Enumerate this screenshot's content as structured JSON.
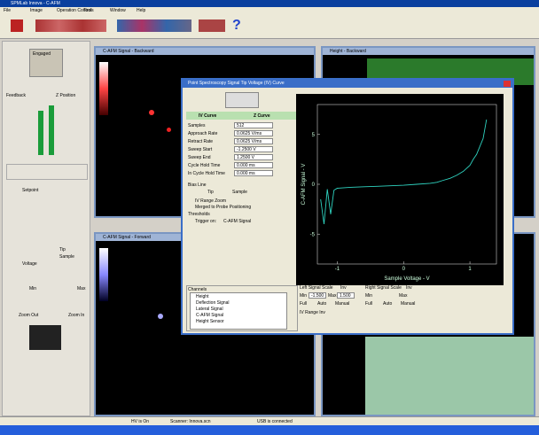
{
  "app_title": "SPMLab Innova - C-AFM",
  "menu": [
    "File",
    "Image",
    "Operation Control",
    "Tools",
    "Window",
    "Help"
  ],
  "left_panel": {
    "engaged": "Engaged",
    "feedback": "Feedback",
    "z_position": "Z Position",
    "setpoint": "Setpoint",
    "tip": "Tip",
    "sample": "Sample",
    "voltage": "Voltage",
    "min": "Min",
    "max": "Max",
    "zoom_out": "Zoom Out",
    "zoom_in": "Zoom In"
  },
  "windows": [
    "C-AFM Signal - Backward",
    "Height - Backward",
    "C-AFM Signal - Forward"
  ],
  "dialog": {
    "title": "Point Spectroscopy Signal Tip Voltage (IV) Curve",
    "tabs": [
      "IV Curve",
      "Z Curve"
    ],
    "fields": [
      [
        "Samples",
        "512"
      ],
      [
        "Approach Rate",
        "0.0625 V/ms"
      ],
      [
        "Retract Rate",
        "0.0625 V/ms"
      ],
      [
        "Sweep Start",
        "-1.2500 V"
      ],
      [
        "Sweep End",
        "1.2500 V"
      ],
      [
        "Cycle Hold Time",
        "0.000 ms"
      ],
      [
        "In Cycle Hold Time",
        "0.000 ms"
      ]
    ],
    "bias_line": "Bias Line",
    "bias_options": [
      "Tip",
      "Sample"
    ],
    "checks": [
      "IV Range Zoom",
      "Merged to Probe Positioning"
    ],
    "thresholds": "Thresholds",
    "trigger": "Trigger on:",
    "trigger_signal": "C-AFM Signal",
    "channels_title": "Channels",
    "channels": [
      "Height",
      "Deflection Signal",
      "Lateral Signal",
      "C-AFM Signal",
      "Height Sensor"
    ],
    "left_scale": "Left Signal Scale",
    "right_scale": "Right Signal Scale",
    "inv": "Inv",
    "min": "Min",
    "max": "Max",
    "min_value": "-1.500",
    "max_value": "1.500",
    "scale_modes": [
      "Full",
      "Auto",
      "Manual"
    ],
    "iv_range_inv": "IV Range Inv"
  },
  "plot": {
    "type": "line",
    "x_label": "Sample Voltage - V",
    "y_label": "C-AFM Signal - V",
    "xlim": [
      -1.3,
      1.4
    ],
    "ylim": [
      -8,
      8
    ],
    "xticks": [
      -1,
      0,
      1
    ],
    "yticks": [
      5,
      0,
      -5
    ],
    "color": "#2fd3c0",
    "x": [
      -1.25,
      -1.2,
      -1.15,
      -1.1,
      -1.05,
      -1.0,
      -0.8,
      -0.6,
      -0.4,
      -0.2,
      0,
      0.2,
      0.4,
      0.5,
      0.6,
      0.7,
      0.8,
      0.9,
      1.0,
      1.05,
      1.1,
      1.15,
      1.2,
      1.25
    ],
    "y": [
      -1.5,
      -4,
      -0.5,
      -3,
      -0.6,
      -0.4,
      -0.3,
      -0.25,
      -0.2,
      -0.15,
      -0.1,
      0,
      0.1,
      0.2,
      0.4,
      0.6,
      0.9,
      1.3,
      1.9,
      2.5,
      3.0,
      3.8,
      4.6,
      6.5
    ]
  },
  "status": [
    "HV is On",
    "Scanner: Innova.scn",
    "USB is connected"
  ]
}
